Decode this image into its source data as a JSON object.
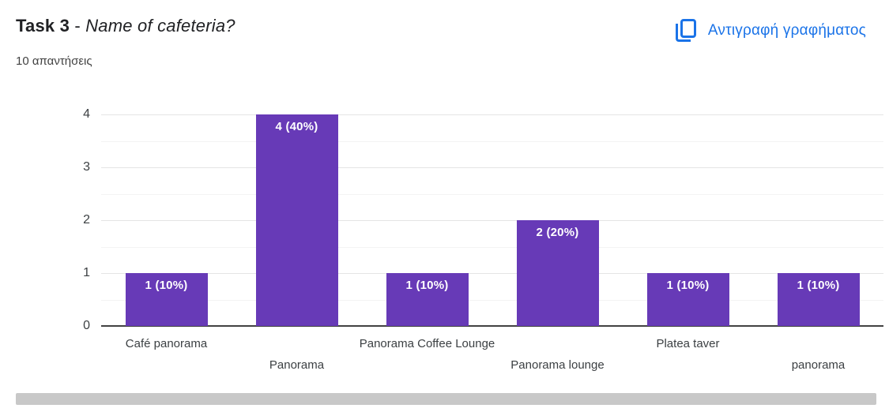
{
  "header": {
    "title_bold": "Task 3",
    "title_separator": " - ",
    "title_italic": "Name of cafeteria?",
    "responses_label": "10 απαντήσεις",
    "copy_button": {
      "label": "Αντιγραφή γραφήματος",
      "icon": "copy-icon",
      "color": "#1a73e8"
    }
  },
  "chart_data": {
    "type": "bar",
    "title": "Task 3 - Name of cafeteria?",
    "subtitle": "10 απαντήσεις",
    "categories": [
      "Café panorama",
      "Panorama",
      "Panorama Coffee Lounge",
      "Panorama lounge",
      "Platea taver",
      "panorama"
    ],
    "values": [
      1,
      4,
      1,
      2,
      1,
      1
    ],
    "bar_labels": [
      "1 (10%)",
      "4 (40%)",
      "1 (10%)",
      "2 (20%)",
      "1 (10%)",
      "1 (10%)"
    ],
    "xlabel": "",
    "ylabel": "",
    "ylim": [
      0,
      4
    ],
    "yticks": [
      0,
      1,
      2,
      3,
      4
    ],
    "grid": true,
    "grid_minor_step": 0.5,
    "legend": "none",
    "x_labels_staggered": true,
    "bar_color": "#673ab7",
    "bar_label_color": "#ffffff",
    "axis_text_color": "#3c4043",
    "baseline_color": "#424242"
  }
}
